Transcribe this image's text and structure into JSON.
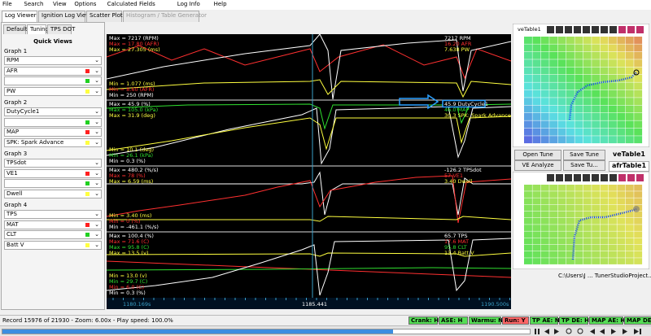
{
  "menu": [
    "File",
    "Search",
    "View",
    "Options",
    "Calculated Fields",
    "Log Info",
    "Help"
  ],
  "tabs": [
    "Log Viewer",
    "Ignition Log Viewer",
    "Scatter Plots",
    "Histogram / Table Generator"
  ],
  "subtabs": [
    "Default",
    "Tuning",
    "TPS DOT"
  ],
  "quick_views": {
    "title": "Quick Views",
    "graphs": [
      {
        "name": "Graph 1",
        "fields": [
          {
            "label": "RPM",
            "color": "#ffffff"
          },
          {
            "label": "AFR",
            "color": "#ff2020"
          },
          null,
          {
            "label": "PW",
            "color": "#ffff40"
          }
        ]
      },
      {
        "name": "Graph 2",
        "fields": [
          {
            "label": "DutyCycle1",
            "color": "#ffffff"
          },
          null,
          {
            "label": "MAP",
            "color": "#ff2020"
          },
          {
            "label": "SPK: Spark Advance",
            "color": "#ffff40"
          }
        ]
      },
      {
        "name": "Graph 3",
        "fields": [
          {
            "label": "TPSdot",
            "color": "#ffffff"
          },
          {
            "label": "VE1",
            "color": "#ff2020"
          },
          null,
          {
            "label": "Dwell",
            "color": "#ffff40"
          }
        ]
      },
      {
        "name": "Graph 4",
        "fields": [
          {
            "label": "TPS",
            "color": "#ffffff"
          },
          {
            "label": "MAT",
            "color": "#ff2020"
          },
          {
            "label": "CLT",
            "color": "#20d020"
          },
          {
            "label": "Batt V",
            "color": "#ffff40"
          }
        ]
      }
    ]
  },
  "graphs": [
    {
      "max": [
        {
          "text": "Max = 7217 (RPM)",
          "color": "#ffffff"
        },
        {
          "text": "Max = 17.80 (AFR)",
          "color": "#ff3030"
        },
        {
          "text": "Max = 27.305 (ms)",
          "color": "#ffff40"
        }
      ],
      "min": [
        {
          "text": "Min = 1.077 (ms)",
          "color": "#ffff40"
        },
        {
          "text": "Min = 8.60 (AFR)",
          "color": "#ff3030"
        },
        {
          "text": "Min = 250 (RPM)",
          "color": "#ffffff"
        }
      ],
      "current": [
        {
          "text": "7217  RPM",
          "color": "#ffffff"
        },
        {
          "text": "16.20  AFR",
          "color": "#ff3030"
        },
        {
          "text": "7.638  PW",
          "color": "#ffff40"
        }
      ]
    },
    {
      "max": [
        {
          "text": "Max = 45.9 (%)",
          "color": "#ffffff"
        },
        {
          "text": "Max = 105.0 (kPa)",
          "color": "#30e030"
        },
        {
          "text": "Max = 31.9 (deg)",
          "color": "#ffff40"
        }
      ],
      "min": [
        {
          "text": "Min = 10.1 (deg)",
          "color": "#ffff40"
        },
        {
          "text": "Min = 26.1 (kPa)",
          "color": "#30e030"
        },
        {
          "text": "Min = 0.3 (%)",
          "color": "#ffffff"
        }
      ],
      "current": [
        {
          "text": "45.9  DutyCycle1",
          "color": "#ffffff"
        },
        {
          "text": "46.0  MAP",
          "color": "#30e030"
        },
        {
          "text": "30.3  SPK: Spark Advance",
          "color": "#ffff40"
        }
      ]
    },
    {
      "max": [
        {
          "text": "Max = 480.2 (%/s)",
          "color": "#ffffff"
        },
        {
          "text": "Max = 78 (%)",
          "color": "#ff3030"
        },
        {
          "text": "Max = 6.59 (ms)",
          "color": "#ffff40"
        }
      ],
      "min": [
        {
          "text": "Min = 3.40 (ms)",
          "color": "#ffff40"
        },
        {
          "text": "Min = 0 (%)",
          "color": "#ff3030"
        },
        {
          "text": "Min = -461.1 (%/s)",
          "color": "#ffffff"
        }
      ],
      "current": [
        {
          "text": "-126.2  TPSdot",
          "color": "#ffffff"
        },
        {
          "text": "57  VE1",
          "color": "#ff3030"
        },
        {
          "text": "3.40  Dwell",
          "color": "#ffff40"
        }
      ]
    },
    {
      "max": [
        {
          "text": "Max = 100.4 (%)",
          "color": "#ffffff"
        },
        {
          "text": "Max = 71.6 (C)",
          "color": "#ff3030"
        },
        {
          "text": "Max = 95.8 (C)",
          "color": "#30e030"
        },
        {
          "text": "Max = 13.5 (v)",
          "color": "#ffff40"
        }
      ],
      "min": [
        {
          "text": "Min = 13.0 (v)",
          "color": "#ffff40"
        },
        {
          "text": "Min = 29.7 (C)",
          "color": "#30e030"
        },
        {
          "text": "Min = 6.0 (C)",
          "color": "#ff3030"
        },
        {
          "text": "Min = 0.3 (%)",
          "color": "#ffffff"
        }
      ],
      "current": [
        {
          "text": "65.7  TPS",
          "color": "#ffffff"
        },
        {
          "text": "17.6  MAT",
          "color": "#ff3030"
        },
        {
          "text": "95.8  CLT",
          "color": "#30e030"
        },
        {
          "text": "13.4  Batt V",
          "color": "#ffff40"
        }
      ]
    }
  ],
  "time_axis": {
    "start": "1180.169s",
    "cursor": "1185.441",
    "end": "1190.500s"
  },
  "table_title": "veTable1",
  "tune_buttons": [
    "Open Tune",
    "Save Tune",
    "VE Analyze",
    "Save Tu..."
  ],
  "table_tabs": [
    "veTable1",
    "afrTable1"
  ],
  "project_path": "C:\\Users\\J ... TunerStudioProject...",
  "status": {
    "record": "Record 15976 of 21930 - Zoom: 6.00x - Play speed: 100.0%",
    "indicators": [
      {
        "text": "Crank: H",
        "color": "#55dd55"
      },
      {
        "text": "ASE: H",
        "color": "#55dd55"
      },
      {
        "text": "Warmu: N",
        "color": "#55dd55"
      },
      {
        "text": "Run: Y",
        "color": "#ff6666"
      },
      {
        "text": "TP AE: N",
        "color": "#55dd55"
      },
      {
        "text": "TP DE: H",
        "color": "#55dd55"
      },
      {
        "text": "MAP AE: H",
        "color": "#55dd55"
      },
      {
        "text": "MAP DE: H",
        "color": "#55dd55"
      }
    ]
  }
}
